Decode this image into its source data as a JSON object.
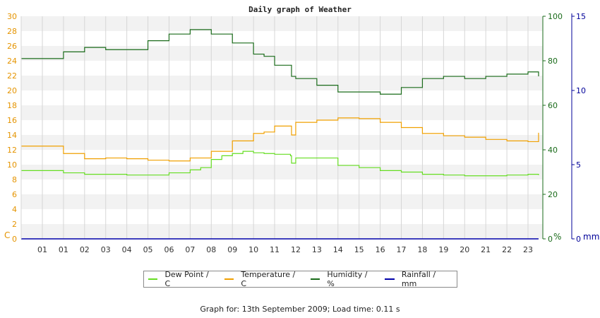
{
  "chart_data": {
    "type": "line",
    "title": "Daily graph of Weather",
    "x_labels": [
      "01",
      "01",
      "02",
      "03",
      "04",
      "05",
      "06",
      "07",
      "08",
      "09",
      "10",
      "11",
      "12",
      "13",
      "14",
      "15",
      "16",
      "17",
      "18",
      "19",
      "20",
      "21",
      "22",
      "23"
    ],
    "axes": {
      "temperature": {
        "unit": "C",
        "ylim": [
          0,
          30
        ],
        "ticks": [
          "0",
          "2",
          "4",
          "6",
          "8",
          "10",
          "12",
          "14",
          "16",
          "18",
          "20",
          "22",
          "24",
          "26",
          "28",
          "30"
        ]
      },
      "humidity": {
        "unit": "%",
        "ylim": [
          0,
          100
        ],
        "ticks": [
          "0",
          "20",
          "40",
          "60",
          "80",
          "100"
        ]
      },
      "rainfall": {
        "unit": "mm",
        "ylim": [
          0,
          15
        ],
        "ticks": [
          "0",
          "5",
          "10",
          "15"
        ]
      }
    },
    "series": [
      {
        "name": "Dew Point / C",
        "axis": "temperature",
        "color": "#66dd22",
        "x": [
          0,
          1,
          2,
          3,
          4,
          5,
          6,
          7,
          7.5,
          8,
          8.5,
          9,
          9.5,
          10,
          10.5,
          11,
          11.75,
          11.8,
          12,
          13,
          14,
          15,
          16,
          17,
          18,
          19,
          20,
          21,
          22,
          23,
          23.5
        ],
        "y": [
          9.2,
          8.9,
          8.7,
          8.7,
          8.6,
          8.6,
          8.9,
          9.3,
          9.6,
          10.7,
          11.2,
          11.5,
          11.8,
          11.6,
          11.5,
          11.4,
          11.2,
          10.2,
          10.9,
          10.9,
          9.9,
          9.6,
          9.2,
          9.0,
          8.7,
          8.6,
          8.5,
          8.5,
          8.6,
          8.7,
          8.6
        ]
      },
      {
        "name": "Temperature / C",
        "axis": "temperature",
        "color": "#f0a000",
        "x": [
          0,
          1,
          2,
          3,
          4,
          5,
          6,
          7,
          8,
          9,
          10,
          10.5,
          11,
          11.75,
          11.8,
          12,
          13,
          14,
          15,
          16,
          17,
          18,
          19,
          20,
          21,
          22,
          23,
          23.4,
          23.5
        ],
        "y": [
          12.5,
          11.5,
          10.8,
          10.9,
          10.8,
          10.6,
          10.5,
          10.9,
          11.8,
          13.2,
          14.2,
          14.4,
          15.2,
          15.2,
          14.0,
          15.7,
          16.0,
          16.3,
          16.2,
          15.7,
          15.0,
          14.2,
          13.9,
          13.7,
          13.4,
          13.2,
          13.1,
          13.1,
          14.3
        ]
      },
      {
        "name": "Humidity / %",
        "axis": "humidity",
        "color": "#1a6b1a",
        "x": [
          0,
          1,
          2,
          3,
          4,
          5,
          6,
          7,
          8,
          9,
          10,
          10.5,
          11,
          11.75,
          11.8,
          12,
          13,
          14,
          14.5,
          15,
          16,
          17,
          18,
          19,
          20,
          21,
          22,
          23,
          23.5
        ],
        "y": [
          81,
          84,
          86,
          85,
          85,
          89,
          92,
          94,
          92,
          88,
          83,
          82,
          78,
          78,
          73,
          72,
          69,
          66,
          66,
          66,
          65,
          68,
          72,
          73,
          72,
          73,
          74,
          75,
          73
        ]
      },
      {
        "name": "Rainfall / mm",
        "axis": "rainfall",
        "color": "#0000aa",
        "x": [
          0,
          23.5
        ],
        "y": [
          0,
          0
        ]
      }
    ],
    "grid": true,
    "legend_position": "bottom",
    "footer": "Graph for: 13th September 2009; Load time: 0.11 s"
  }
}
